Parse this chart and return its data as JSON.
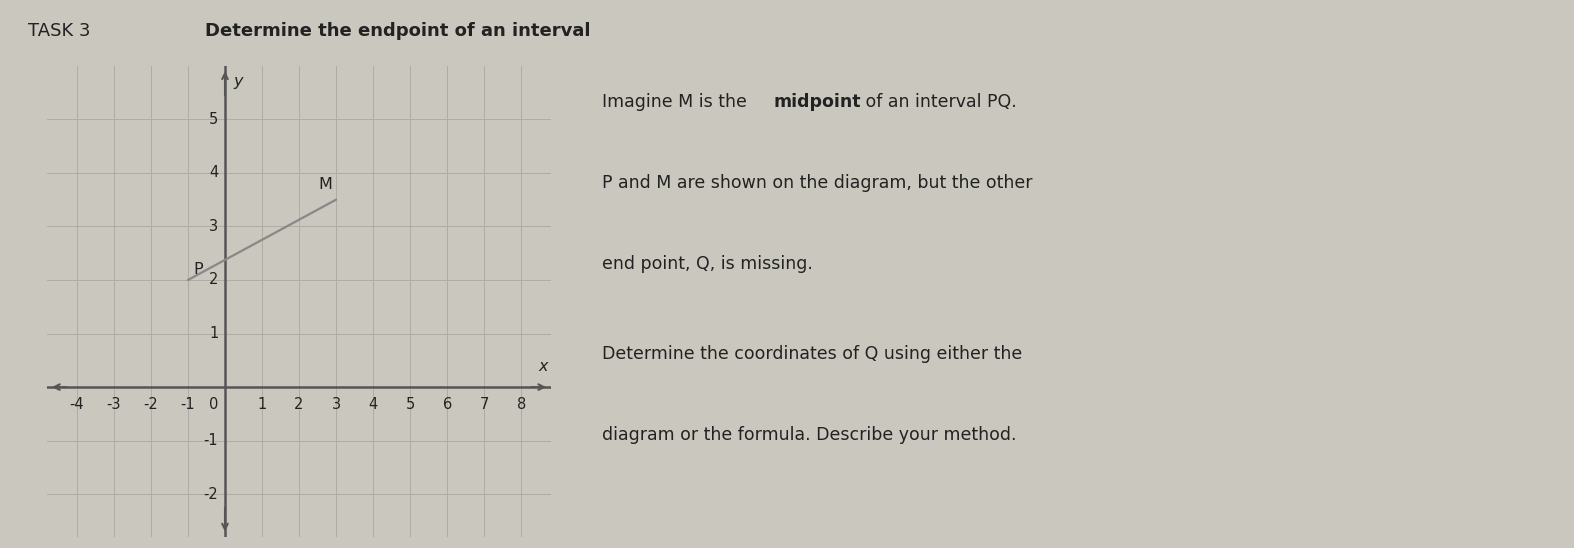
{
  "title": "TASK 3",
  "title_sub": "Determine the endpoint of an interval",
  "background_color": "#cac7be",
  "grid_background": "#d8d5cc",
  "xlim": [
    -4.8,
    8.8
  ],
  "ylim": [
    -2.8,
    6.0
  ],
  "xticks": [
    -4,
    -3,
    -2,
    -1,
    0,
    1,
    2,
    3,
    4,
    5,
    6,
    7,
    8
  ],
  "yticks": [
    -2,
    -1,
    1,
    2,
    3,
    4,
    5
  ],
  "xlabel": "x",
  "ylabel": "y",
  "P": [
    -1,
    2
  ],
  "M": [
    3,
    3.5
  ],
  "P_label": "P",
  "M_label": "M",
  "line_color": "#888888",
  "axis_color": "#555555",
  "grid_color": "#b0aca3",
  "text_color": "#222222",
  "font_size_title": 13,
  "font_size_text": 12.5,
  "tick_fontsize": 10.5
}
